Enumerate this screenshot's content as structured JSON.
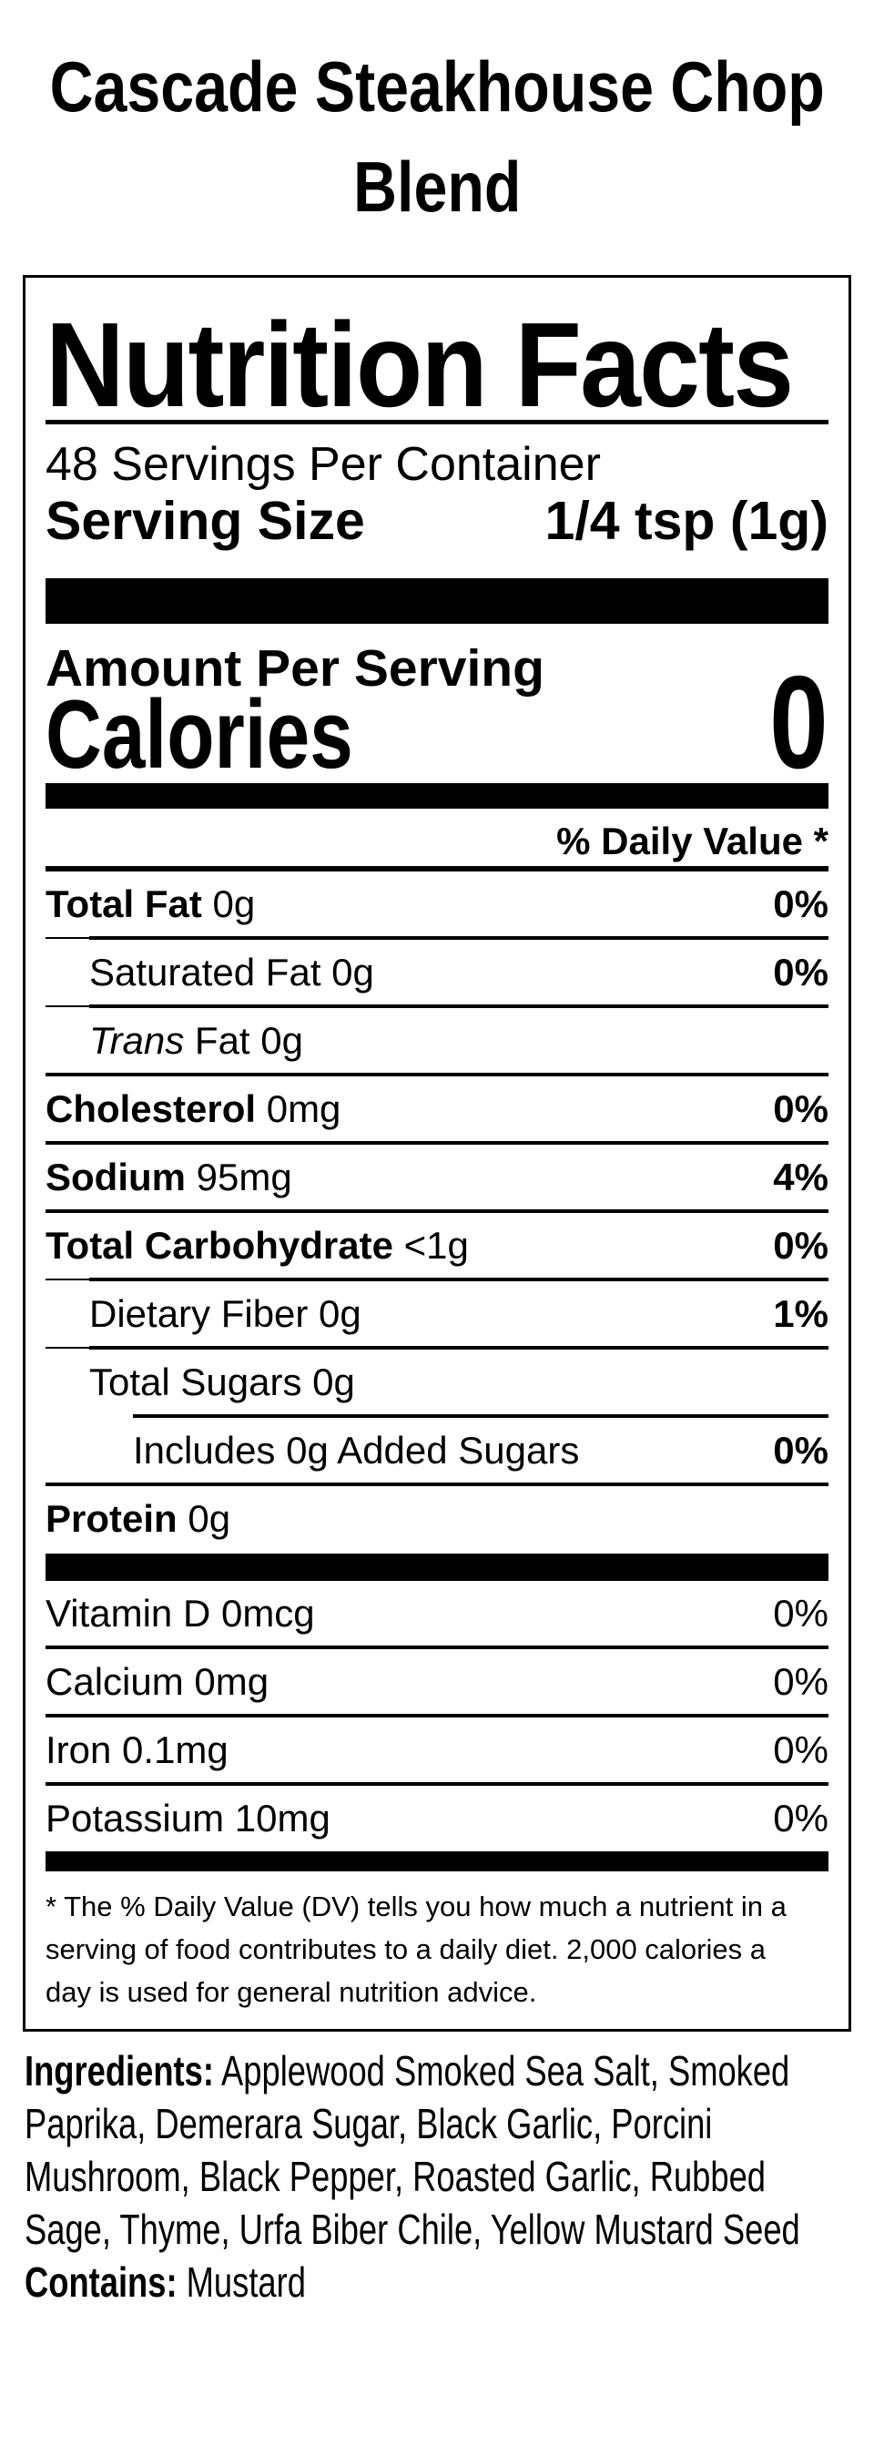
{
  "colors": {
    "background": "#ffffff",
    "text": "#000000"
  },
  "product": {
    "title": "Cascade Steakhouse Chop Blend"
  },
  "nutrition_facts": {
    "heading": "Nutrition Facts",
    "servings_per_container": "48 Servings Per Container",
    "serving_size_label": "Serving Size",
    "serving_size_value": "1/4 tsp (1g)",
    "amount_per_serving": "Amount Per Serving",
    "calories_label": "Calories",
    "calories_value": "0",
    "daily_value_header": "% Daily Value *",
    "rows": [
      {
        "bold": "Total Fat",
        "rest": " 0g",
        "dv": "0%"
      },
      {
        "plain": "Saturated Fat 0g",
        "dv": "0%"
      },
      {
        "italic": "Trans",
        "rest": " Fat 0g",
        "dv": ""
      },
      {
        "bold": "Cholesterol",
        "rest": " 0mg",
        "dv": "0%"
      },
      {
        "bold": "Sodium",
        "rest": " 95mg",
        "dv": "4%"
      },
      {
        "bold": "Total Carbohydrate",
        "rest": " <1g",
        "dv": "0%"
      },
      {
        "plain": "Dietary Fiber 0g",
        "dv": "1%"
      },
      {
        "plain": "Total Sugars 0g",
        "dv": ""
      },
      {
        "plain": "Includes 0g Added Sugars",
        "dv": "0%"
      },
      {
        "bold": "Protein",
        "rest": " 0g",
        "dv": ""
      }
    ],
    "vitamins": [
      {
        "name": "Vitamin D 0mcg",
        "dv": "0%"
      },
      {
        "name": "Calcium 0mg",
        "dv": "0%"
      },
      {
        "name": "Iron 0.1mg",
        "dv": "0%"
      },
      {
        "name": "Potassium 10mg",
        "dv": "0%"
      }
    ],
    "footnote": "* The % Daily Value (DV) tells you how much a nutrient in a serving of food contributes to a daily diet. 2,000 calories a day is used for general nutrition advice."
  },
  "ingredients": {
    "label": "Ingredients:",
    "text": " Applewood Smoked Sea Salt, Smoked Paprika, Demerara Sugar, Black Garlic, Porcini Mushroom, Black Pepper, Roasted Garlic, Rubbed Sage, Thyme, Urfa Biber Chile, Yellow Mustard Seed",
    "contains_label": "Contains:",
    "contains_text": " Mustard"
  }
}
